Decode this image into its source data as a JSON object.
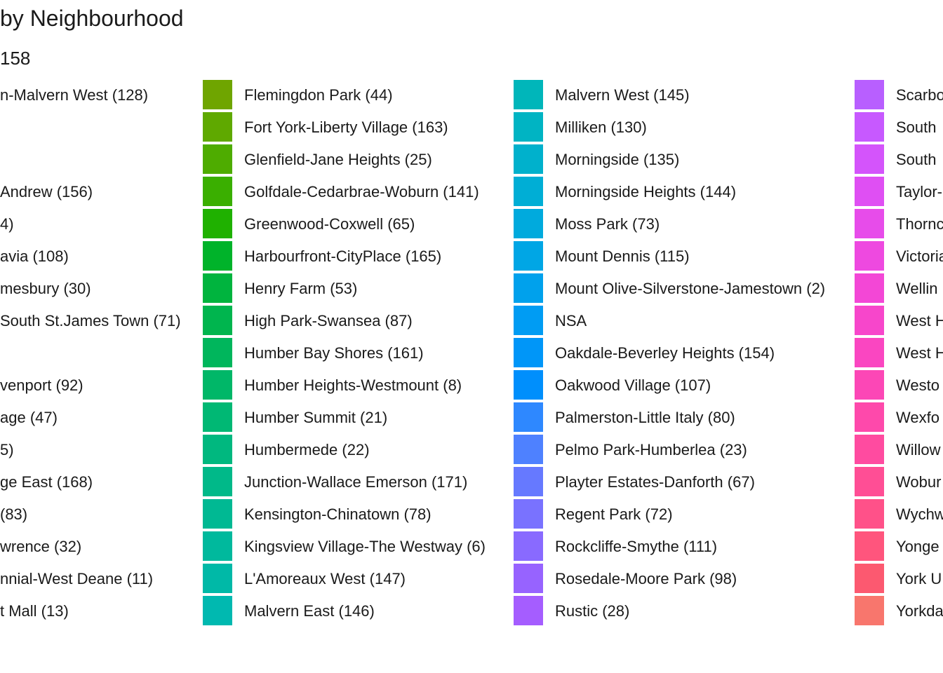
{
  "chart_data": {
    "type": "legend",
    "title": "by Neighbourhood",
    "subtitle": "158",
    "column0_partial_labels": [
      "n-Malvern West (128)",
      "",
      "",
      "Andrew (156)",
      "4)",
      "avia (108)",
      "mesbury (30)",
      "South St.James Town (71)",
      "",
      "venport (92)",
      "age (47)",
      "5)",
      "ge East (168)",
      "(83)",
      "wrence (32)",
      "nnial-West Deane (11)",
      "t Mall (13)"
    ],
    "legend_columns": [
      {
        "items": [
          {
            "label": "Flemingdon Park (44)",
            "color": "#6FA500"
          },
          {
            "label": "Fort York-Liberty Village (163)",
            "color": "#5FA900"
          },
          {
            "label": "Glenfield-Jane Heights (25)",
            "color": "#4EAC00"
          },
          {
            "label": "Golfdale-Cedarbrae-Woburn (141)",
            "color": "#3AAF00"
          },
          {
            "label": "Greenwood-Coxwell (65)",
            "color": "#1FB100"
          },
          {
            "label": "Harbourfront-CityPlace (165)",
            "color": "#00B32A"
          },
          {
            "label": "Henry Farm (53)",
            "color": "#00B43E"
          },
          {
            "label": "High Park-Swansea (87)",
            "color": "#00B54E"
          },
          {
            "label": "Humber Bay Shores (161)",
            "color": "#00B65C"
          },
          {
            "label": "Humber Heights-Westmount (8)",
            "color": "#00B768"
          },
          {
            "label": "Humber Summit (21)",
            "color": "#00B874"
          },
          {
            "label": "Humbermede (22)",
            "color": "#00B87F"
          },
          {
            "label": "Junction-Wallace Emerson (171)",
            "color": "#00B989"
          },
          {
            "label": "Kensington-Chinatown (78)",
            "color": "#00B993"
          },
          {
            "label": "Kingsview Village-The Westway (6)",
            "color": "#00B99D"
          },
          {
            "label": "L'Amoreaux West (147)",
            "color": "#00B9A7"
          },
          {
            "label": "Malvern East (146)",
            "color": "#00B9B0"
          }
        ]
      },
      {
        "items": [
          {
            "label": "Malvern West (145)",
            "color": "#00B6BA"
          },
          {
            "label": "Milliken (130)",
            "color": "#00B4C3"
          },
          {
            "label": "Morningside (135)",
            "color": "#00B1CC"
          },
          {
            "label": "Morningside Heights (144)",
            "color": "#00AED5"
          },
          {
            "label": "Moss Park (73)",
            "color": "#00AADD"
          },
          {
            "label": "Mount Dennis (115)",
            "color": "#00A6E5"
          },
          {
            "label": "Mount Olive-Silverstone-Jamestown (2)",
            "color": "#00A1EC"
          },
          {
            "label": "NSA",
            "color": "#009CF3"
          },
          {
            "label": "Oakdale-Beverley Heights (154)",
            "color": "#0096F8"
          },
          {
            "label": "Oakwood Village (107)",
            "color": "#008FFC"
          },
          {
            "label": "Palmerston-Little Italy (80)",
            "color": "#2E88FF"
          },
          {
            "label": "Pelmo Park-Humberlea (23)",
            "color": "#4E81FF"
          },
          {
            "label": "Playter Estates-Danforth (67)",
            "color": "#6679FF"
          },
          {
            "label": "Regent Park (72)",
            "color": "#7972FF"
          },
          {
            "label": "Rockcliffe-Smythe (111)",
            "color": "#896AFF"
          },
          {
            "label": "Rosedale-Moore Park (98)",
            "color": "#9763FF"
          },
          {
            "label": "Rustic (28)",
            "color": "#A55DFF"
          }
        ]
      },
      {
        "items": [
          {
            "label": "Scarbo",
            "color": "#B85FFF"
          },
          {
            "label": "South",
            "color": "#C759FF"
          },
          {
            "label": "South",
            "color": "#D454FB"
          },
          {
            "label": "Taylor-",
            "color": "#DF4FF3"
          },
          {
            "label": "Thornc",
            "color": "#E74CEA"
          },
          {
            "label": "Victoria",
            "color": "#EE49E0"
          },
          {
            "label": "Wellin",
            "color": "#F347D6"
          },
          {
            "label": "West H",
            "color": "#F746CB"
          },
          {
            "label": "West H",
            "color": "#FA46C1"
          },
          {
            "label": "Westo",
            "color": "#FC47B6"
          },
          {
            "label": "Wexfo",
            "color": "#FE49AB"
          },
          {
            "label": "Willow",
            "color": "#FF4BA0"
          },
          {
            "label": "Wobur",
            "color": "#FF4E95"
          },
          {
            "label": "Wychw",
            "color": "#FF5189"
          },
          {
            "label": "Yonge",
            "color": "#FF557D"
          },
          {
            "label": "York U",
            "color": "#FC5970"
          },
          {
            "label": "Yorkda",
            "color": "#F8766D"
          }
        ]
      }
    ]
  }
}
